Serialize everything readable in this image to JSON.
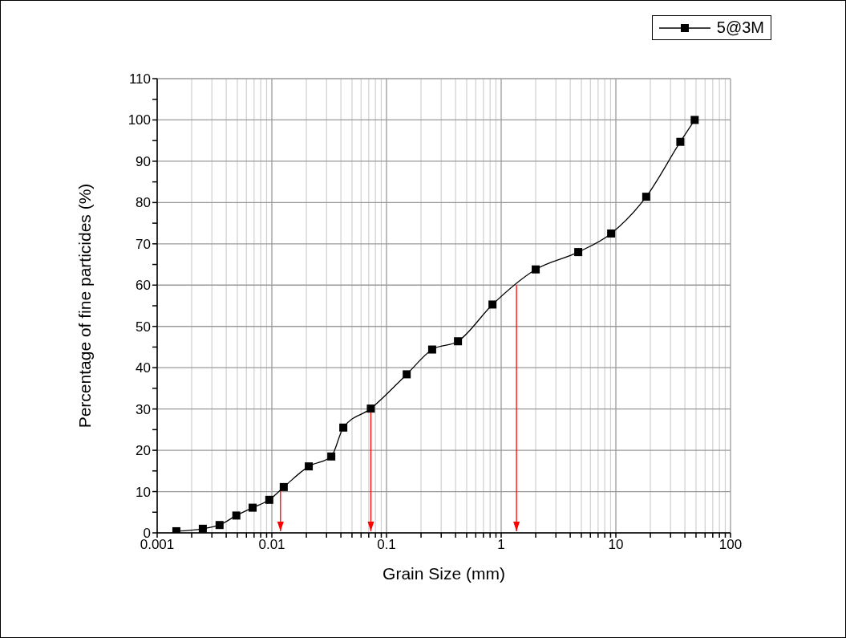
{
  "chart_data": {
    "type": "line",
    "xlabel": "Grain Size (mm)",
    "ylabel": "Percentage of fine particides (%)",
    "log": "x",
    "grid": true,
    "legend": "top right",
    "xlim": [
      0.001,
      100
    ],
    "ylim": [
      0,
      110
    ],
    "xticks": [
      0.001,
      {
        "value": 0.002,
        "label": null
      },
      {
        "value": 0.003,
        "label": null
      },
      {
        "value": 0.004,
        "label": null
      },
      {
        "value": 0.005,
        "label": null
      },
      {
        "value": 0.006,
        "label": null
      },
      {
        "value": 0.007,
        "label": null
      },
      {
        "value": 0.008,
        "label": null
      },
      {
        "value": 0.009,
        "label": null
      },
      0.01,
      {
        "value": 0.02,
        "label": null
      },
      {
        "value": 0.03,
        "label": null
      },
      {
        "value": 0.04,
        "label": null
      },
      {
        "value": 0.05,
        "label": null
      },
      {
        "value": 0.06,
        "label": null
      },
      {
        "value": 0.07,
        "label": null
      },
      {
        "value": 0.08,
        "label": null
      },
      {
        "value": 0.09,
        "label": null
      },
      0.1,
      {
        "value": 0.2,
        "label": null
      },
      {
        "value": 0.3,
        "label": null
      },
      {
        "value": 0.4,
        "label": null
      },
      {
        "value": 0.5,
        "label": null
      },
      {
        "value": 0.6,
        "label": null
      },
      {
        "value": 0.7,
        "label": null
      },
      {
        "value": 0.8,
        "label": null
      },
      {
        "value": 0.9,
        "label": null
      },
      1,
      {
        "value": 2,
        "label": null
      },
      {
        "value": 3,
        "label": null
      },
      {
        "value": 4,
        "label": null
      },
      {
        "value": 5,
        "label": null
      },
      {
        "value": 6,
        "label": null
      },
      {
        "value": 7,
        "label": null
      },
      {
        "value": 8,
        "label": null
      },
      {
        "value": 9,
        "label": null
      },
      10,
      {
        "value": 20,
        "label": null
      },
      {
        "value": 30,
        "label": null
      },
      {
        "value": 40,
        "label": null
      },
      {
        "value": 50,
        "label": null
      },
      {
        "value": 60,
        "label": null
      },
      {
        "value": 70,
        "label": null
      },
      {
        "value": 80,
        "label": null
      },
      {
        "value": 90,
        "label": null
      },
      100
    ],
    "yticks": [
      0,
      {
        "value": 5,
        "label": null
      },
      10,
      {
        "value": 15,
        "label": null
      },
      20,
      {
        "value": 25,
        "label": null
      },
      30,
      {
        "value": 35,
        "label": null
      },
      40,
      {
        "value": 45,
        "label": null
      },
      50,
      {
        "value": 55,
        "label": null
      },
      60,
      {
        "value": 65,
        "label": null
      },
      70,
      {
        "value": 75,
        "label": null
      },
      80,
      {
        "value": 85,
        "label": null
      },
      90,
      {
        "value": 95,
        "label": null
      },
      100,
      {
        "value": 105,
        "label": null
      },
      110
    ],
    "series": [
      {
        "name": "5@3M",
        "color": "#000000",
        "marker": "square",
        "x": [
          0.00147,
          0.0025,
          0.0035,
          0.0049,
          0.0068,
          0.0095,
          0.0127,
          0.021,
          0.033,
          0.042,
          0.073,
          0.15,
          0.25,
          0.42,
          0.84,
          2,
          4.7,
          9.1,
          18.4,
          36.5,
          48.7
        ],
        "values": [
          0.4,
          1,
          1.9,
          4.2,
          6.1,
          8,
          11.1,
          16.1,
          18.5,
          25.5,
          30.1,
          38.4,
          44.4,
          46.4,
          55.3,
          63.8,
          68,
          72.5,
          81.4,
          94.7,
          100
        ]
      }
    ],
    "ref_lines": [
      {
        "axis": "x",
        "value": 0.0119,
        "color": "#ff0000"
      },
      {
        "axis": "x",
        "value": 0.073,
        "color": "#ff0000"
      },
      {
        "axis": "x",
        "value": 1.36,
        "color": "#ff0000"
      }
    ]
  }
}
